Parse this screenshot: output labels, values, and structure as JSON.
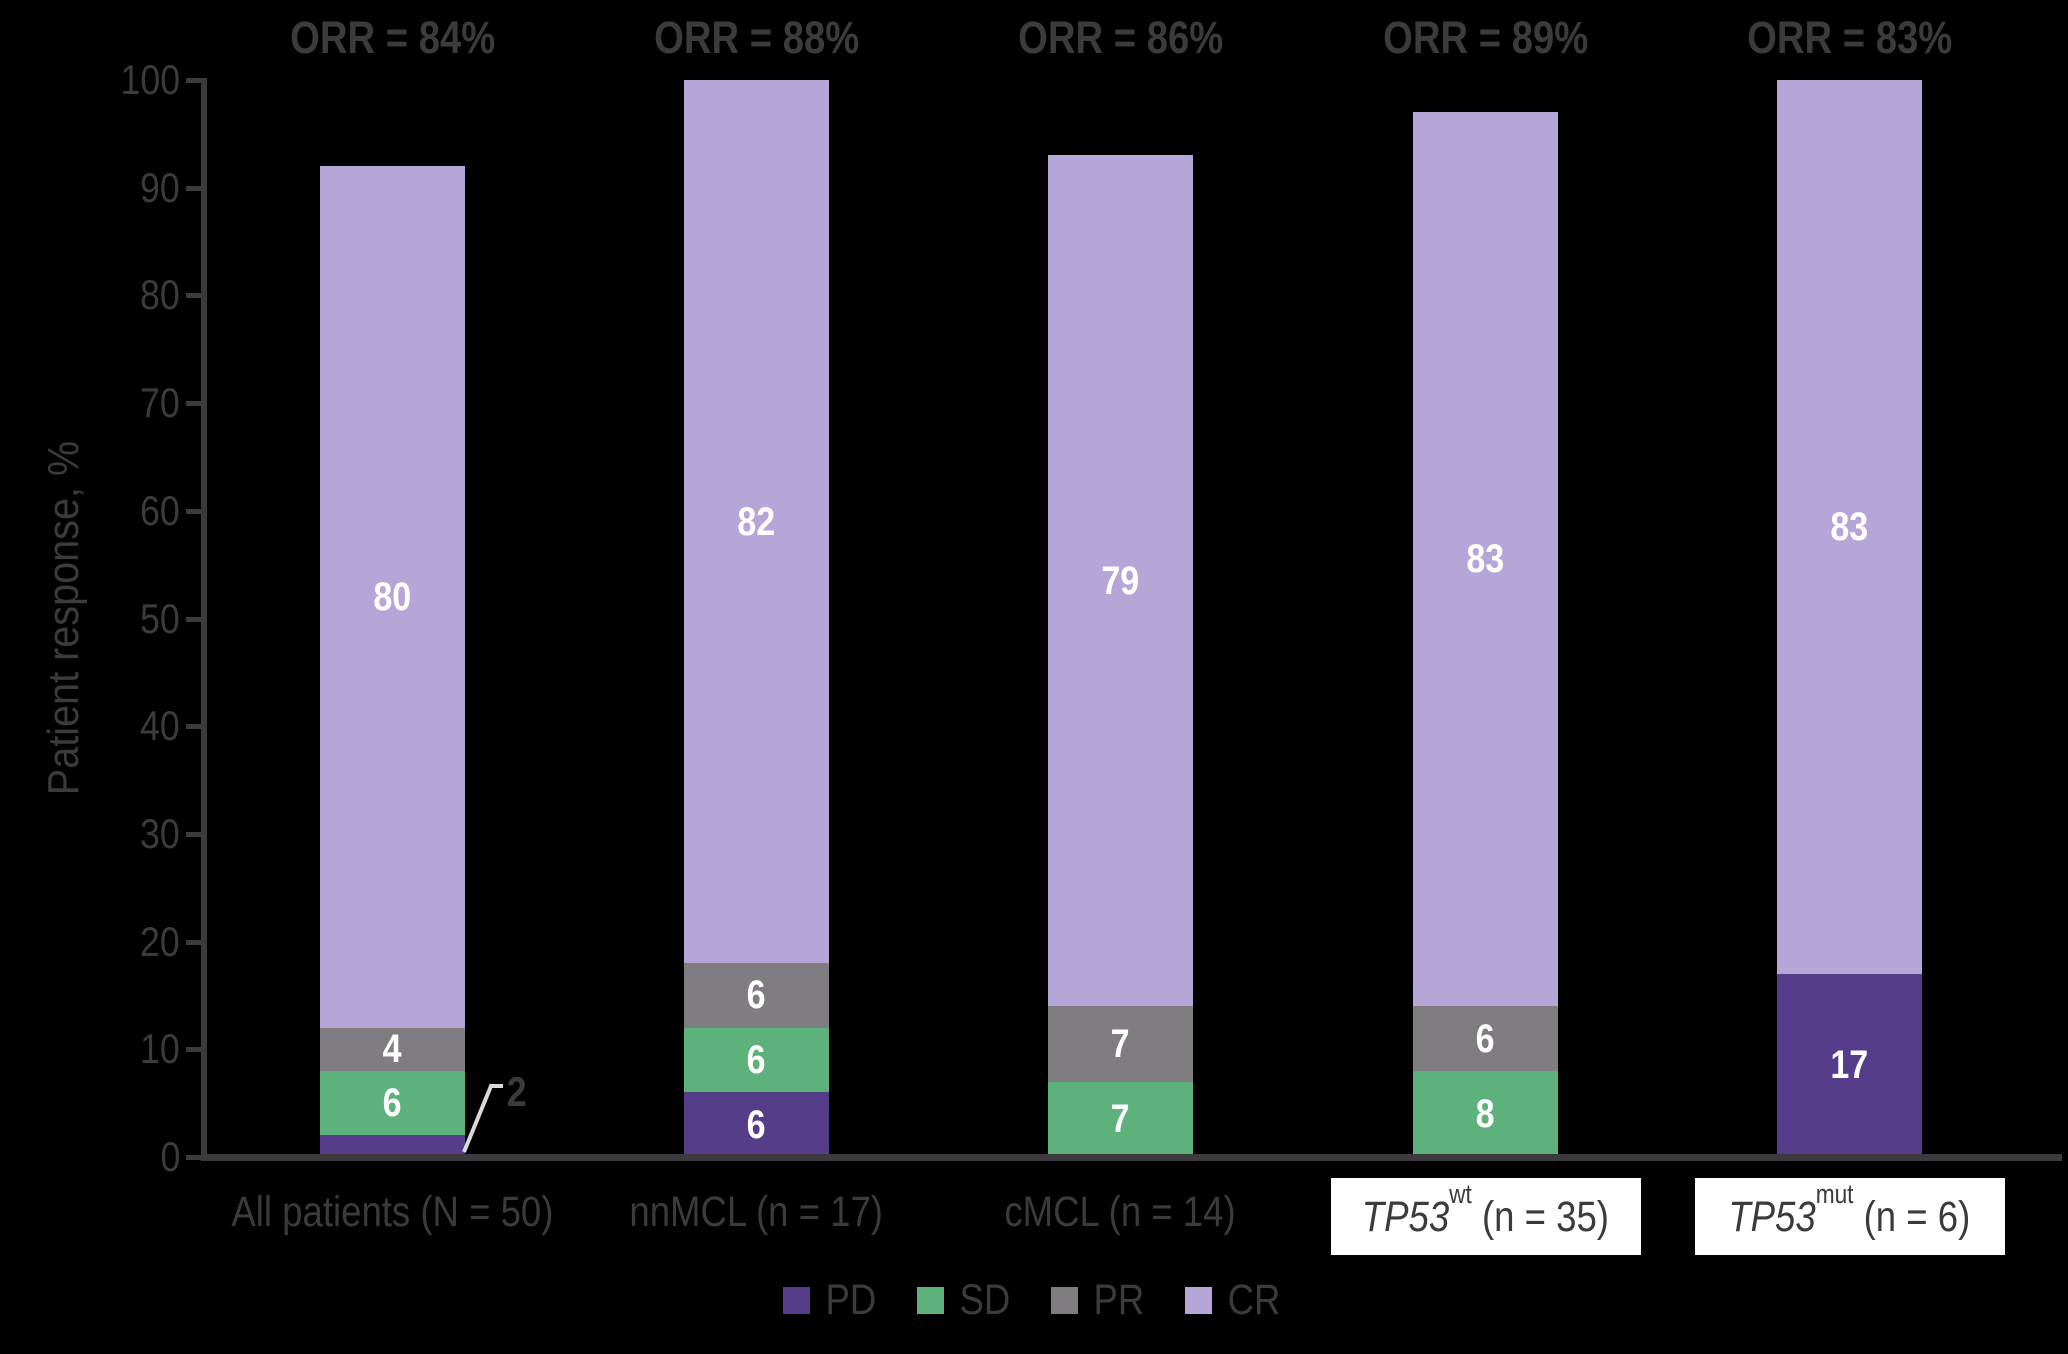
{
  "chart_data": {
    "type": "bar",
    "stacked": true,
    "title": "",
    "ylabel": "Patient response, %",
    "xlabel": "",
    "ylim": [
      0,
      100
    ],
    "yticks": [
      0,
      10,
      20,
      30,
      40,
      50,
      60,
      70,
      80,
      90,
      100
    ],
    "grid": false,
    "legend_position": "bottom",
    "categories": [
      {
        "text": "All patients (N = 50)",
        "boxed": false
      },
      {
        "text": "nnMCL (n = 17)",
        "boxed": false
      },
      {
        "text": "cMCL (n = 14)",
        "boxed": false
      },
      {
        "text": "TP53wt (n = 35)",
        "boxed": true,
        "italic": "TP53",
        "sup": "wt",
        "rest": " (n = 35)"
      },
      {
        "text": "TP53mut (n = 6)",
        "boxed": true,
        "italic": "TP53",
        "sup": "mut",
        "rest": " (n = 6)"
      }
    ],
    "orr_labels": [
      "ORR = 84%",
      "ORR = 88%",
      "ORR = 86%",
      "ORR = 89%",
      "ORR = 83%"
    ],
    "series": [
      {
        "name": "PD",
        "color": "#553d8a",
        "values": [
          2,
          6,
          0,
          0,
          17
        ]
      },
      {
        "name": "SD",
        "color": "#5cb27a",
        "values": [
          6,
          6,
          7,
          8,
          0
        ]
      },
      {
        "name": "PR",
        "color": "#7f7d7f",
        "values": [
          4,
          6,
          7,
          6,
          0
        ]
      },
      {
        "name": "CR",
        "color": "#b5a6d7",
        "values": [
          80,
          82,
          79,
          83,
          83
        ]
      }
    ],
    "callout": {
      "text": "2",
      "category_index": 0,
      "series": "PD"
    },
    "min_label_value": 4
  },
  "colors": {
    "background": "#000000",
    "text": "#3b3a3c",
    "axis": "#3b3a3c",
    "bar_value_label": "#ffffff",
    "callout_line": "#d9d9d9",
    "category_box_bg": "#ffffff"
  }
}
